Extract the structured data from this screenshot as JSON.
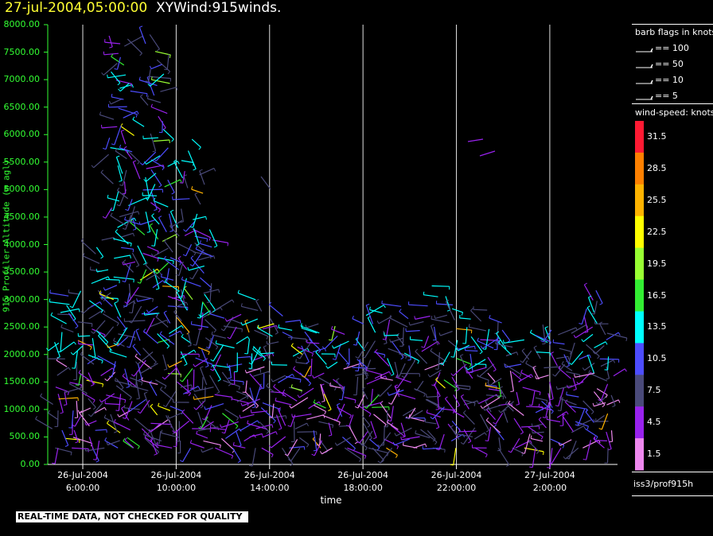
{
  "header": {
    "date_label": "27-jul-2004,05:00:00",
    "plot_name": "XYWind:915winds."
  },
  "notice": "REAL-TIME DATA, NOT CHECKED FOR QUALITY",
  "source": "iss3/prof915h",
  "legend_barbs": {
    "title": "barb flags in knots",
    "entries": [
      {
        "label": "== 100",
        "knots": 100
      },
      {
        "label": "== 50",
        "knots": 50
      },
      {
        "label": "== 10",
        "knots": 10
      },
      {
        "label": "== 5",
        "knots": 5
      }
    ]
  },
  "legend_speed": {
    "title": "wind-speed: knots",
    "bins": [
      {
        "label": "31.5",
        "color": "#ff1a33"
      },
      {
        "label": "28.5",
        "color": "#ff8000"
      },
      {
        "label": "25.5",
        "color": "#ffb300"
      },
      {
        "label": "22.5",
        "color": "#ffff00"
      },
      {
        "label": "19.5",
        "color": "#99ff33"
      },
      {
        "label": "16.5",
        "color": "#33ee33"
      },
      {
        "label": "13.5",
        "color": "#00ffff"
      },
      {
        "label": "10.5",
        "color": "#4d4dff"
      },
      {
        "label": "7.5",
        "color": "#4a4a7a"
      },
      {
        "label": "4.5",
        "color": "#9922ee"
      },
      {
        "label": "1.5",
        "color": "#ee88ee"
      }
    ]
  },
  "chart_data": {
    "type": "scatter",
    "ylabel": "915 Profiler Altitude (m agl)",
    "xlabel": "time",
    "ylim": [
      0,
      8000
    ],
    "xlim_hours": [
      4.5,
      28.9
    ],
    "y_ticks": [
      "8000.00",
      "7500.00",
      "7000.00",
      "6500.00",
      "6000.00",
      "5500.00",
      "5000.00",
      "4500.00",
      "4000.00",
      "3500.00",
      "3000.00",
      "2500.00",
      "2000.00",
      "1500.00",
      "1000.00",
      "500.00",
      "0.00"
    ],
    "x_ticks": [
      {
        "line1": "26-Jul-2004",
        "line2": "6:00:00",
        "hour": 6
      },
      {
        "line1": "26-Jul-2004",
        "line2": "10:00:00",
        "hour": 10
      },
      {
        "line1": "26-Jul-2004",
        "line2": "14:00:00",
        "hour": 14
      },
      {
        "line1": "26-Jul-2004",
        "line2": "18:00:00",
        "hour": 18
      },
      {
        "line1": "26-Jul-2004",
        "line2": "22:00:00",
        "hour": 22
      },
      {
        "line1": "27-Jul-2004",
        "line2": "2:00:00",
        "hour": 26
      }
    ],
    "grid": "vertical lines at x ticks"
  }
}
